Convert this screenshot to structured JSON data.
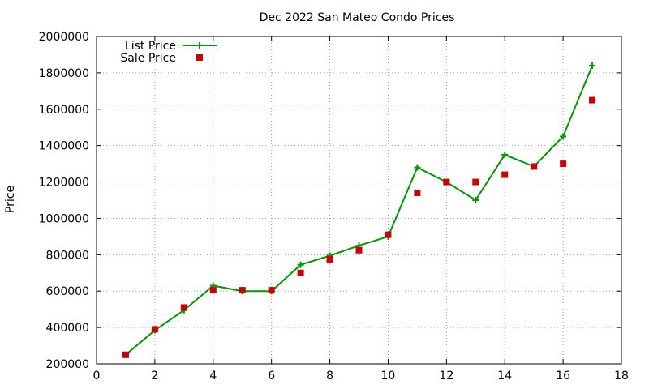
{
  "chart_data": {
    "type": "line",
    "title": "Dec 2022 San Mateo Condo Prices",
    "xlabel": "",
    "ylabel": "Price",
    "xlim": [
      0,
      18
    ],
    "ylim": [
      200000,
      2000000
    ],
    "xticks": [
      0,
      2,
      4,
      6,
      8,
      10,
      12,
      14,
      16,
      18
    ],
    "yticks": [
      200000,
      400000,
      600000,
      800000,
      1000000,
      1200000,
      1400000,
      1600000,
      1800000,
      2000000
    ],
    "x_tick_labels": [
      "0",
      "2",
      "4",
      "6",
      "8",
      "10",
      "12",
      "14",
      "16",
      "18"
    ],
    "y_tick_labels": [
      "200000",
      "400000",
      "600000",
      "800000",
      "1000000",
      "1200000",
      "1400000",
      "1600000",
      "1800000",
      "2000000"
    ],
    "grid": true,
    "legend_position": "top-left",
    "x": [
      1,
      2,
      3,
      4,
      5,
      6,
      7,
      8,
      9,
      10,
      11,
      12,
      13,
      14,
      15,
      16,
      17
    ],
    "series": [
      {
        "name": "List Price",
        "style": "line-plus",
        "color": "#009900",
        "values": [
          250000,
          385000,
          495000,
          630000,
          600000,
          600000,
          745000,
          795000,
          850000,
          900000,
          1280000,
          1200000,
          1100000,
          1350000,
          1285000,
          1450000,
          1840000
        ]
      },
      {
        "name": "Sale Price",
        "style": "square-points",
        "color": "#cc0000",
        "values": [
          250000,
          390000,
          510000,
          605000,
          605000,
          605000,
          700000,
          775000,
          825000,
          910000,
          1140000,
          1200000,
          1200000,
          1240000,
          1285000,
          1300000,
          1650000
        ]
      }
    ]
  }
}
